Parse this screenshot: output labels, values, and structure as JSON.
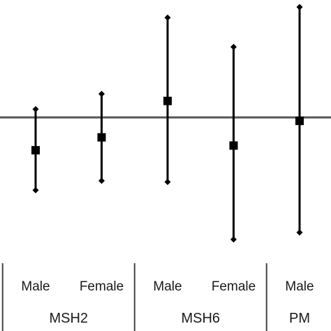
{
  "chart_data": {
    "type": "scatter",
    "subtype": "forest-plot-with-error-bars",
    "reference_line": 0,
    "ylim": [
      -1.1,
      1.0
    ],
    "grid": false,
    "groups": [
      {
        "label": "MSH2",
        "categories": [
          "Male",
          "Female"
        ]
      },
      {
        "label": "MSH6",
        "categories": [
          "Male",
          "Female"
        ]
      },
      {
        "label": "PM",
        "categories": [
          "Male"
        ]
      }
    ],
    "points": [
      {
        "group": "MSH2",
        "category": "Male",
        "estimate": -0.28,
        "lower": -0.62,
        "upper": 0.07
      },
      {
        "group": "MSH2",
        "category": "Female",
        "estimate": -0.17,
        "lower": -0.54,
        "upper": 0.2
      },
      {
        "group": "MSH6",
        "category": "Male",
        "estimate": 0.14,
        "lower": -0.55,
        "upper": 0.85
      },
      {
        "group": "MSH6",
        "category": "Female",
        "estimate": -0.24,
        "lower": -1.04,
        "upper": 0.6
      },
      {
        "group": "PM",
        "category": "Male",
        "estimate": -0.03,
        "lower": -0.98,
        "upper": 0.94
      }
    ]
  }
}
